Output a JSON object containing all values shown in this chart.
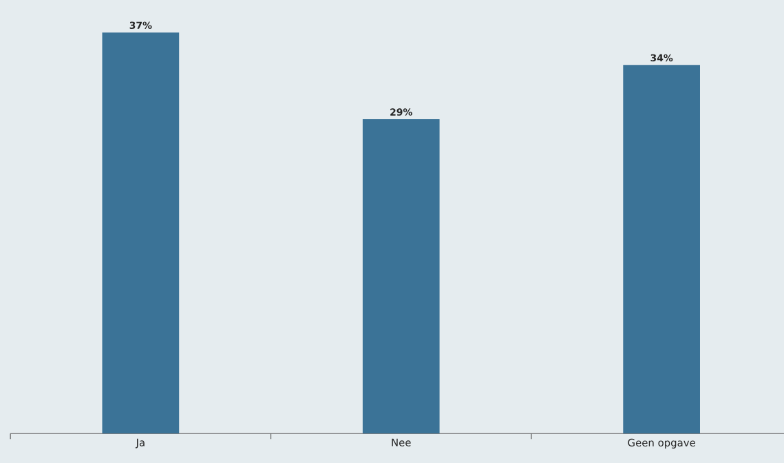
{
  "chart_data": {
    "type": "bar",
    "categories": [
      "Ja",
      "Nee",
      "Geen opgave"
    ],
    "values": [
      37,
      29,
      34
    ],
    "value_labels": [
      "37%",
      "29%",
      "34%"
    ],
    "color": "#3b7397",
    "ylim": [
      0,
      40
    ]
  }
}
